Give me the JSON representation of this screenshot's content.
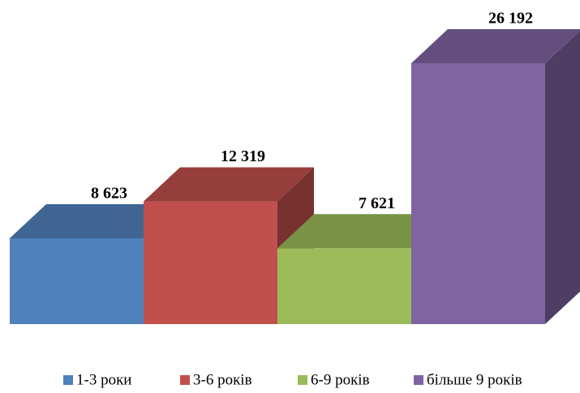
{
  "chart_data": {
    "type": "bar",
    "series": [
      {
        "name": "1-3 роки",
        "color": "#4f81bd",
        "values": [
          8623
        ],
        "value_labels": [
          "8 623"
        ]
      },
      {
        "name": "3-6 років",
        "color": "#c0504d",
        "values": [
          12319
        ],
        "value_labels": [
          "12 319"
        ]
      },
      {
        "name": "6-9 років",
        "color": "#9bbb59",
        "values": [
          7621
        ],
        "value_labels": [
          "7 621"
        ]
      },
      {
        "name": "більше 9 років",
        "color": "#8064a2",
        "values": [
          26192
        ],
        "value_labels": [
          "26 192"
        ]
      }
    ],
    "legend": "bottom"
  }
}
